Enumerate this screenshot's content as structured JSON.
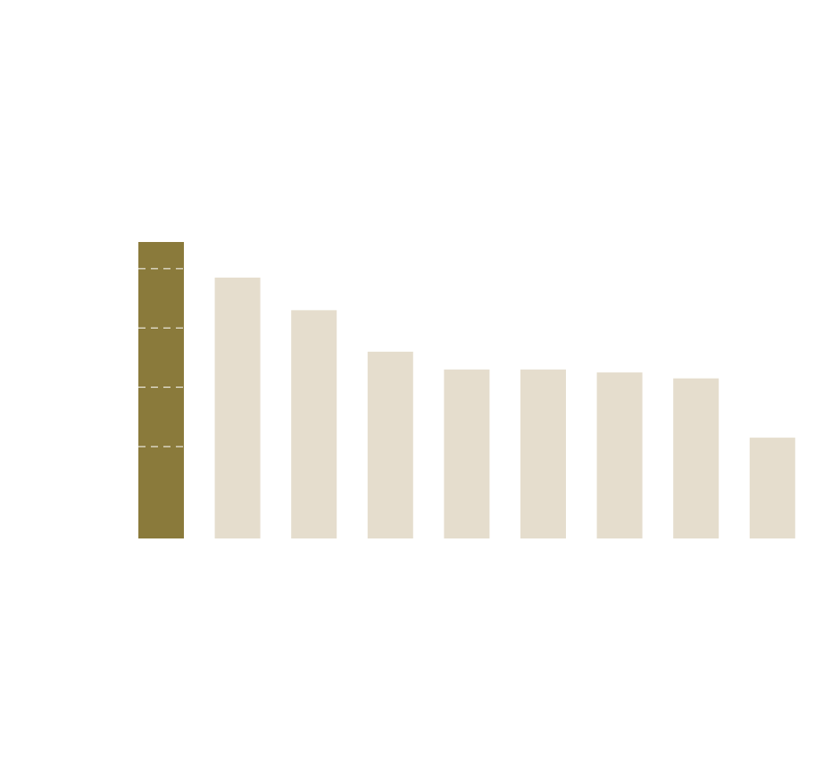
{
  "chart_data": {
    "type": "bar",
    "values": [
      100,
      88,
      77,
      63,
      57,
      57,
      56,
      54,
      34
    ],
    "colors": [
      "#8a7a3b",
      "#e5ddcd",
      "#e5ddcd",
      "#e5ddcd",
      "#e5ddcd",
      "#e5ddcd",
      "#e5ddcd",
      "#e5ddcd",
      "#e5ddcd"
    ],
    "ylim": [
      0,
      110
    ],
    "yticks": [
      31,
      51,
      71,
      91
    ],
    "grid": true
  }
}
